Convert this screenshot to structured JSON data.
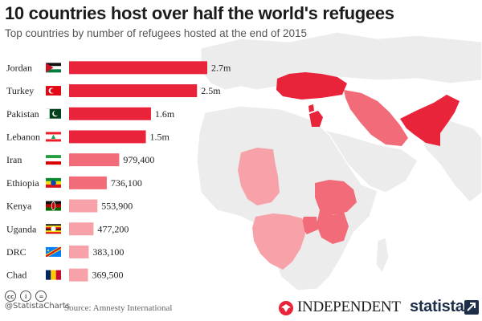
{
  "header": {
    "title": "10 countries host over half the world's refugees",
    "subtitle": "Top countries by number of refugees hosted at the end of 2015"
  },
  "footer": {
    "handle": "@StatistaCharts",
    "source": "Source: Amnesty International",
    "publisher": "INDEPENDENT",
    "brand": "statista"
  },
  "colors": {
    "bar_high": "#e8233a",
    "bar_mid": "#f26b78",
    "bar_low": "#f7a2a8",
    "map_land": "#ececec",
    "map_border": "#ffffff"
  },
  "chart_data": {
    "type": "bar",
    "orientation": "horizontal",
    "title": "10 countries host over half the world's refugees",
    "subtitle": "Top countries by number of refugees hosted at the end of 2015",
    "categories": [
      "Jordan",
      "Turkey",
      "Pakistan",
      "Lebanon",
      "Iran",
      "Ethiopia",
      "Kenya",
      "Uganda",
      "DRC",
      "Chad"
    ],
    "values": [
      2700000,
      2500000,
      1600000,
      1500000,
      979400,
      736100,
      553900,
      477200,
      383100,
      369500
    ],
    "data_labels": [
      "2.7m",
      "2.5m",
      "1.6m",
      "1.5m",
      "979,400",
      "736,100",
      "553,900",
      "477,200",
      "383,100",
      "369,500"
    ],
    "flag_icons": [
      "jordan-flag-icon",
      "turkey-flag-icon",
      "pakistan-flag-icon",
      "lebanon-flag-icon",
      "iran-flag-icon",
      "ethiopia-flag-icon",
      "kenya-flag-icon",
      "uganda-flag-icon",
      "drc-flag-icon",
      "chad-flag-icon"
    ],
    "xlim": [
      0,
      2700000
    ],
    "grid": false,
    "legend": "none"
  }
}
